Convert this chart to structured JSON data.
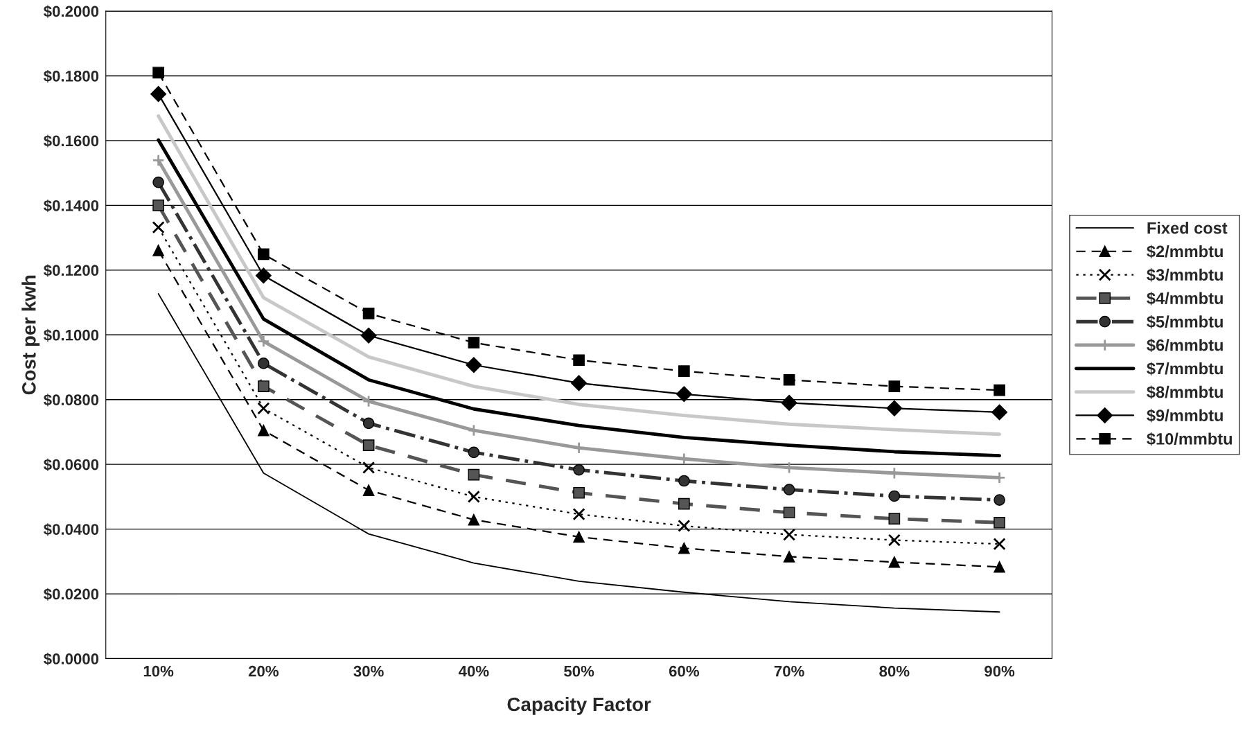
{
  "chart_data": {
    "type": "line",
    "xlabel": "Capacity Factor",
    "ylabel": "Cost per kwh",
    "categories": [
      "10%",
      "20%",
      "30%",
      "40%",
      "50%",
      "60%",
      "70%",
      "80%",
      "90%"
    ],
    "ylim": [
      0,
      0.2
    ],
    "yticks": [
      {
        "value": 0,
        "label": "$0.0000"
      },
      {
        "value": 0.02,
        "label": "$0.0200"
      },
      {
        "value": 0.04,
        "label": "$0.0400"
      },
      {
        "value": 0.06,
        "label": "$0.0600"
      },
      {
        "value": 0.08,
        "label": "$0.0800"
      },
      {
        "value": 0.1,
        "label": "$0.1000"
      },
      {
        "value": 0.12,
        "label": "$0.1200"
      },
      {
        "value": 0.14,
        "label": "$0.1400"
      },
      {
        "value": 0.16,
        "label": "$0.1600"
      },
      {
        "value": 0.18,
        "label": "$0.1800"
      },
      {
        "value": 0.2,
        "label": "$0.2000"
      }
    ],
    "grid": "y",
    "legend": "right",
    "series": [
      {
        "name": "Fixed cost",
        "color": "#000000",
        "marker": "none",
        "line_style": "solid",
        "values": [
          0.1127,
          0.0573,
          0.0385,
          0.0295,
          0.0239,
          0.0205,
          0.0176,
          0.0156,
          0.0144
        ]
      },
      {
        "name": "$2/mmbtu",
        "color": "#000000",
        "marker": "triangle",
        "line_style": "dashed",
        "values": [
          0.1261,
          0.0705,
          0.052,
          0.0429,
          0.0376,
          0.0341,
          0.0315,
          0.0298,
          0.0283
        ]
      },
      {
        "name": "$3/mmbtu",
        "color": "#000000",
        "marker": "cross",
        "line_style": "dotted",
        "values": [
          0.1332,
          0.0773,
          0.059,
          0.05,
          0.0446,
          0.041,
          0.0383,
          0.0366,
          0.0354
        ]
      },
      {
        "name": "$4/mmbtu",
        "color": "#555555",
        "marker": "square",
        "line_style": "dashed",
        "values": [
          0.14,
          0.0841,
          0.0659,
          0.0568,
          0.0512,
          0.0478,
          0.0451,
          0.0432,
          0.042
        ]
      },
      {
        "name": "$5/mmbtu",
        "color": "#333333",
        "marker": "circle",
        "line_style": "dashdot",
        "values": [
          0.1471,
          0.0912,
          0.0727,
          0.0637,
          0.0583,
          0.0549,
          0.0522,
          0.0502,
          0.049
        ]
      },
      {
        "name": "$6/mmbtu",
        "color": "#999999",
        "marker": "plus",
        "line_style": "solid",
        "values": [
          0.1539,
          0.098,
          0.0795,
          0.0705,
          0.0651,
          0.0617,
          0.059,
          0.0573,
          0.0559
        ]
      },
      {
        "name": "$7/mmbtu",
        "color": "#000000",
        "marker": "none",
        "line_style": "solid",
        "values": [
          0.1602,
          0.1049,
          0.0861,
          0.0771,
          0.072,
          0.0683,
          0.0659,
          0.0639,
          0.0627
        ]
      },
      {
        "name": "$8/mmbtu",
        "color": "#c8c8c8",
        "marker": "none",
        "line_style": "solid",
        "values": [
          0.1676,
          0.1115,
          0.0932,
          0.0841,
          0.0785,
          0.0751,
          0.0724,
          0.0707,
          0.0693
        ]
      },
      {
        "name": "$9/mmbtu",
        "color": "#000000",
        "marker": "diamond",
        "line_style": "solid",
        "values": [
          0.1744,
          0.1183,
          0.0998,
          0.0907,
          0.0851,
          0.0817,
          0.079,
          0.0773,
          0.0761
        ]
      },
      {
        "name": "$10/mmbtu",
        "color": "#000000",
        "marker": "square",
        "line_style": "dashed",
        "values": [
          0.181,
          0.1249,
          0.1066,
          0.0976,
          0.0922,
          0.0888,
          0.0861,
          0.0841,
          0.0829
        ]
      }
    ]
  }
}
